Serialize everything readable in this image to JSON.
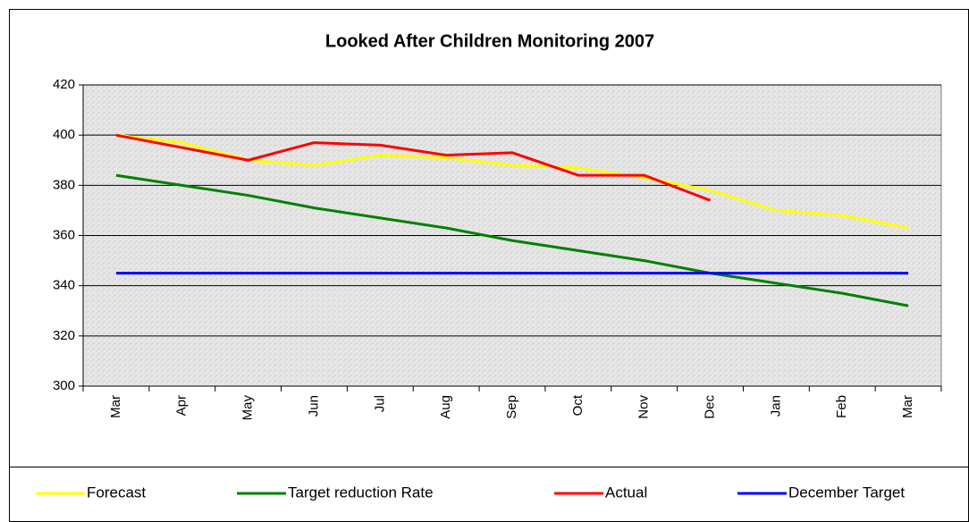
{
  "chart_data": {
    "type": "line",
    "title": "Looked After Children Monitoring 2007",
    "categories": [
      "Mar",
      "Apr",
      "May",
      "Jun",
      "Jul",
      "Aug",
      "Sep",
      "Oct",
      "Nov",
      "Dec",
      "Jan",
      "Feb",
      "Mar"
    ],
    "series": [
      {
        "name": "Forecast",
        "color": "#ffff00",
        "values": [
          400,
          397,
          390,
          388,
          392,
          391,
          388,
          387,
          383,
          378,
          370,
          368,
          363
        ]
      },
      {
        "name": "Target reduction Rate",
        "color": "#008000",
        "values": [
          384,
          380,
          376,
          371,
          367,
          363,
          358,
          354,
          350,
          345,
          341,
          337,
          332
        ]
      },
      {
        "name": "Actual",
        "color": "#ff0000",
        "values": [
          400,
          395,
          390,
          397,
          396,
          392,
          393,
          384,
          384,
          374,
          null,
          null,
          null
        ]
      },
      {
        "name": "December Target",
        "color": "#0000ff",
        "values": [
          345,
          345,
          345,
          345,
          345,
          345,
          345,
          345,
          345,
          345,
          345,
          345,
          345
        ]
      }
    ],
    "ylim": [
      300,
      420
    ],
    "yticks": [
      300,
      320,
      340,
      360,
      380,
      400,
      420
    ],
    "grid": true,
    "legend": "bottom"
  }
}
